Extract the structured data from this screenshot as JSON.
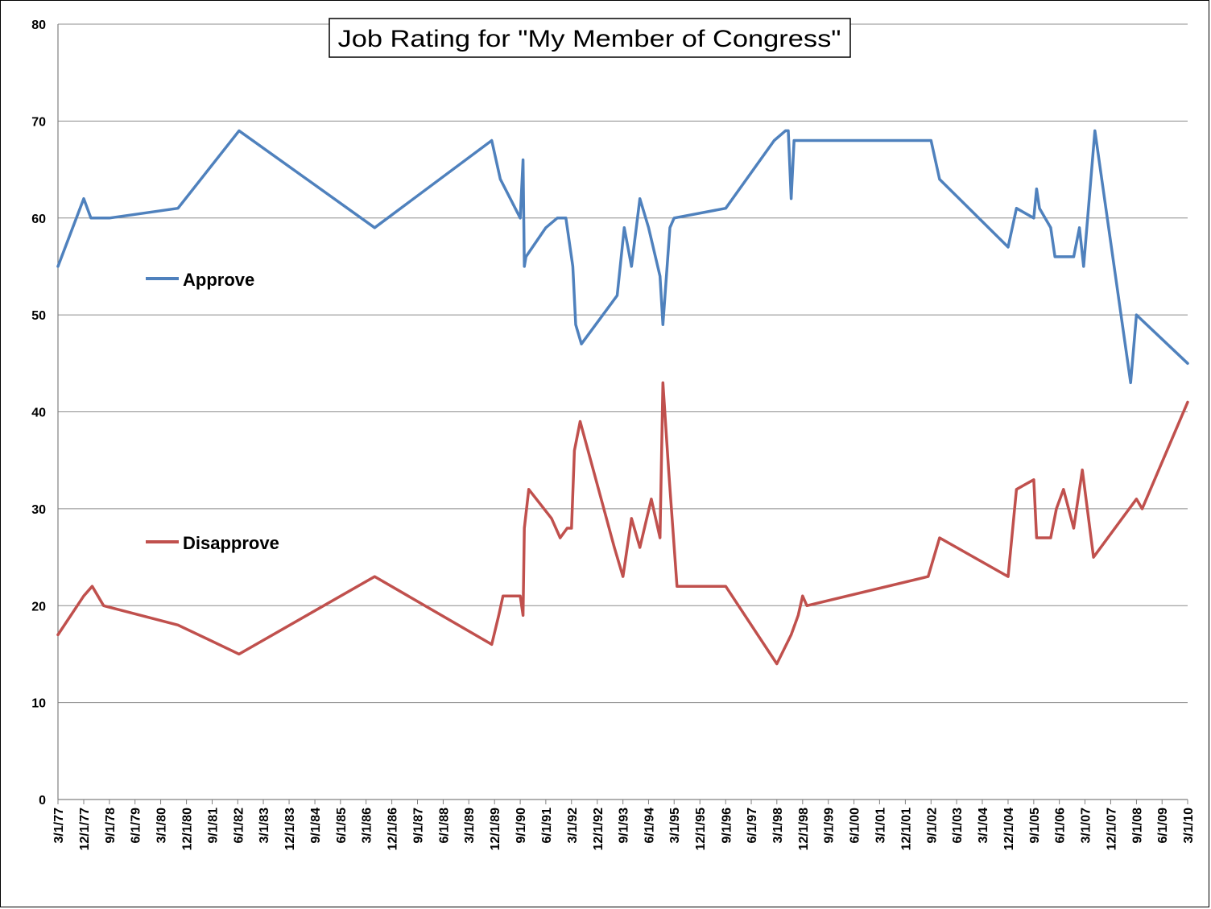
{
  "chart_data": {
    "type": "line",
    "title": "Job Rating for \"My Member of Congress\"",
    "ylim": [
      0,
      80
    ],
    "yticks": [
      0,
      10,
      20,
      30,
      40,
      50,
      60,
      70,
      80
    ],
    "grid": true,
    "xticks": [
      "3/1/77",
      "12/1/77",
      "9/1/78",
      "6/1/79",
      "3/1/80",
      "12/1/80",
      "9/1/81",
      "6/1/82",
      "3/1/83",
      "12/1/83",
      "9/1/84",
      "6/1/85",
      "3/1/86",
      "12/1/86",
      "9/1/87",
      "6/1/88",
      "3/1/89",
      "12/1/89",
      "9/1/90",
      "6/1/91",
      "3/1/92",
      "12/1/92",
      "9/1/93",
      "6/1/94",
      "3/1/95",
      "12/1/95",
      "9/1/96",
      "6/1/97",
      "3/1/98",
      "12/1/98",
      "9/1/99",
      "6/1/00",
      "3/1/01",
      "12/1/01",
      "9/1/02",
      "6/1/03",
      "3/1/04",
      "12/1/04",
      "9/1/05",
      "6/1/06",
      "3/1/07",
      "12/1/07",
      "9/1/08",
      "6/1/09",
      "3/1/10"
    ],
    "xrange": [
      "3/1/77",
      "3/1/10"
    ],
    "series": [
      {
        "name": "Approve",
        "color": "#4F81BD",
        "points": [
          [
            "3/1/77",
            55
          ],
          [
            "12/1/77",
            62
          ],
          [
            "2/15/78",
            60
          ],
          [
            "9/1/78",
            60
          ],
          [
            "9/1/80",
            61
          ],
          [
            "6/15/82",
            69
          ],
          [
            "6/1/86",
            59
          ],
          [
            "11/1/89",
            68
          ],
          [
            "2/1/90",
            64
          ],
          [
            "9/1/90",
            60
          ],
          [
            "10/1/90",
            66
          ],
          [
            "10/15/90",
            55
          ],
          [
            "11/1/90",
            56
          ],
          [
            "6/1/91",
            59
          ],
          [
            "10/1/91",
            60
          ],
          [
            "1/1/92",
            60
          ],
          [
            "3/15/92",
            55
          ],
          [
            "4/15/92",
            49
          ],
          [
            "6/15/92",
            47
          ],
          [
            "7/1/93",
            52
          ],
          [
            "9/15/93",
            59
          ],
          [
            "12/1/93",
            55
          ],
          [
            "3/1/94",
            62
          ],
          [
            "6/1/94",
            59
          ],
          [
            "10/1/94",
            54
          ],
          [
            "11/1/94",
            49
          ],
          [
            "1/15/95",
            59
          ],
          [
            "3/1/95",
            60
          ],
          [
            "9/1/96",
            61
          ],
          [
            "2/1/98",
            68
          ],
          [
            "6/1/98",
            69
          ],
          [
            "7/1/98",
            69
          ],
          [
            "8/1/98",
            62
          ],
          [
            "9/1/98",
            68
          ],
          [
            "9/1/02",
            68
          ],
          [
            "12/1/02",
            64
          ],
          [
            "12/1/04",
            57
          ],
          [
            "3/1/05",
            61
          ],
          [
            "9/1/05",
            60
          ],
          [
            "10/1/05",
            63
          ],
          [
            "11/1/05",
            61
          ],
          [
            "3/1/06",
            59
          ],
          [
            "4/15/06",
            56
          ],
          [
            "11/1/06",
            56
          ],
          [
            "1/1/07",
            59
          ],
          [
            "2/15/07",
            55
          ],
          [
            "6/15/07",
            69
          ],
          [
            "7/1/08",
            43
          ],
          [
            "9/1/08",
            50
          ],
          [
            "3/1/10",
            45
          ]
        ]
      },
      {
        "name": "Disapprove",
        "color": "#C0504D",
        "points": [
          [
            "3/1/77",
            17
          ],
          [
            "12/1/77",
            21
          ],
          [
            "3/1/78",
            22
          ],
          [
            "7/1/78",
            20
          ],
          [
            "9/1/80",
            18
          ],
          [
            "6/15/82",
            15
          ],
          [
            "6/1/86",
            23
          ],
          [
            "11/1/89",
            16
          ],
          [
            "1/15/90",
            19
          ],
          [
            "3/1/90",
            21
          ],
          [
            "9/1/90",
            21
          ],
          [
            "10/1/90",
            19
          ],
          [
            "10/15/90",
            28
          ],
          [
            "12/1/90",
            32
          ],
          [
            "8/1/91",
            29
          ],
          [
            "11/1/91",
            27
          ],
          [
            "1/15/92",
            28
          ],
          [
            "3/1/92",
            28
          ],
          [
            "4/1/92",
            36
          ],
          [
            "6/1/92",
            39
          ],
          [
            "6/1/93",
            26
          ],
          [
            "9/1/93",
            23
          ],
          [
            "12/1/93",
            29
          ],
          [
            "3/1/94",
            26
          ],
          [
            "7/1/94",
            31
          ],
          [
            "10/1/94",
            27
          ],
          [
            "11/1/94",
            43
          ],
          [
            "1/1/95",
            34
          ],
          [
            "4/1/95",
            22
          ],
          [
            "9/1/96",
            22
          ],
          [
            "3/1/98",
            14
          ],
          [
            "8/1/98",
            17
          ],
          [
            "10/15/98",
            19
          ],
          [
            "12/1/98",
            21
          ],
          [
            "1/15/99",
            20
          ],
          [
            "8/1/02",
            23
          ],
          [
            "12/1/02",
            27
          ],
          [
            "12/1/04",
            23
          ],
          [
            "3/1/05",
            32
          ],
          [
            "9/1/05",
            33
          ],
          [
            "10/1/05",
            27
          ],
          [
            "3/1/06",
            27
          ],
          [
            "5/1/06",
            30
          ],
          [
            "7/15/06",
            32
          ],
          [
            "11/1/06",
            28
          ],
          [
            "2/1/07",
            34
          ],
          [
            "6/1/07",
            25
          ],
          [
            "9/1/08",
            31
          ],
          [
            "11/1/08",
            30
          ],
          [
            "3/1/10",
            41
          ]
        ]
      }
    ],
    "legend": [
      {
        "label": "Approve",
        "color": "#4F81BD"
      },
      {
        "label": "Disapprove",
        "color": "#C0504D"
      }
    ]
  }
}
